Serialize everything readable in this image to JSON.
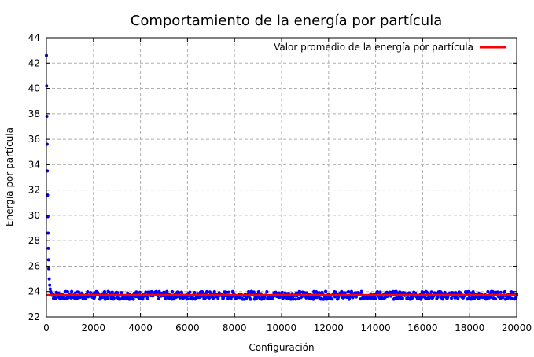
{
  "chart_data": {
    "type": "scatter",
    "title": "Comportamiento de la energía por partícula",
    "xlabel": "Configuración",
    "ylabel": "Energía por partícula",
    "xlim": [
      0,
      20000
    ],
    "ylim": [
      22,
      44
    ],
    "x_ticks": [
      0,
      2000,
      4000,
      6000,
      8000,
      10000,
      12000,
      14000,
      16000,
      18000,
      20000
    ],
    "y_ticks": [
      22,
      24,
      26,
      28,
      30,
      32,
      34,
      36,
      38,
      40,
      42,
      44
    ],
    "grid": true,
    "legend_position": "top-right",
    "series": [
      {
        "name": "",
        "kind": "points",
        "color": "#0000ff",
        "x": [
          0,
          10,
          20,
          30,
          40,
          50,
          60,
          70,
          80,
          90,
          100,
          120,
          140,
          160,
          180,
          200,
          250,
          300,
          400,
          500,
          700,
          1000,
          1500,
          2000,
          3000,
          4000,
          5000,
          6000,
          7000,
          8000,
          9000,
          10000,
          11000,
          12000,
          13000,
          14000,
          15000,
          16000,
          17000,
          18000,
          19000,
          20000
        ],
        "y": [
          42.6,
          40.2,
          37.8,
          35.6,
          33.5,
          31.6,
          29.9,
          28.6,
          27.4,
          26.5,
          25.8,
          25.0,
          24.5,
          24.2,
          24.0,
          23.9,
          23.8,
          23.75,
          23.7,
          23.7,
          23.7,
          23.7,
          23.7,
          23.7,
          23.7,
          23.7,
          23.7,
          23.7,
          23.7,
          23.7,
          23.7,
          23.7,
          23.7,
          23.7,
          23.7,
          23.7,
          23.7,
          23.7,
          23.7,
          23.7,
          23.7,
          23.7
        ],
        "noise_band": [
          23.4,
          24.1
        ]
      },
      {
        "name": "Valor promedio de la energía por partícula",
        "kind": "line",
        "color": "#ff0000",
        "x": [
          0,
          20000
        ],
        "y": [
          23.72,
          23.72
        ]
      }
    ]
  }
}
